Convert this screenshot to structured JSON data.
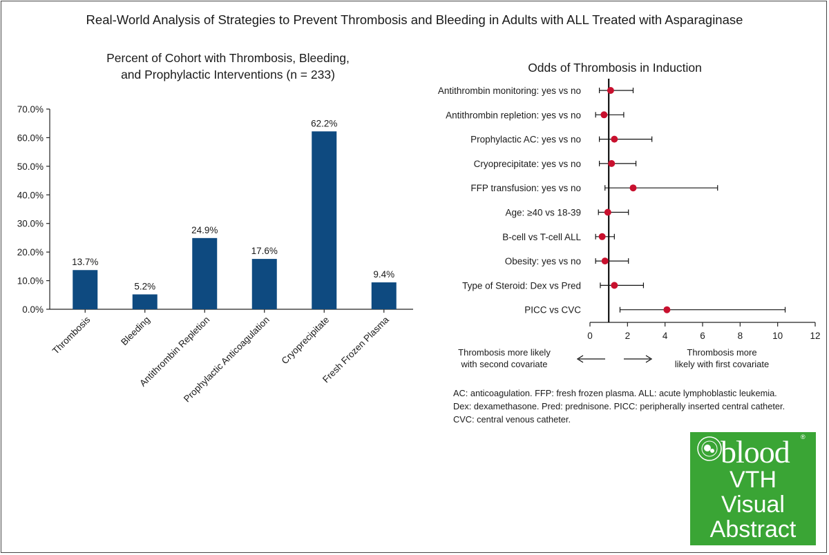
{
  "title": "Real-World Analysis of Strategies to Prevent Thrombosis and Bleeding in Adults with ALL Treated with Asparaginase",
  "chart_data": [
    {
      "type": "bar",
      "title": "Percent of Cohort with Thrombosis, Bleeding, and Prophylactic Interventions (n = 233)",
      "title_lines": [
        "Percent of Cohort with Thrombosis, Bleeding,",
        "and Prophylactic Interventions (n = 233)"
      ],
      "categories": [
        "Thrombosis",
        "Bleeding",
        "Antithrombin Repletion",
        "Prophylactic Anticoagulation",
        "Cryoprecipitate",
        "Fresh Frozen Plasma"
      ],
      "values": [
        13.7,
        5.2,
        24.9,
        17.6,
        62.2,
        9.4
      ],
      "value_labels": [
        "13.7%",
        "5.2%",
        "24.9%",
        "17.6%",
        "62.2%",
        "9.4%"
      ],
      "ylim": [
        0,
        70
      ],
      "yticks": [
        0,
        10,
        20,
        30,
        40,
        50,
        60,
        70
      ],
      "ytick_labels": [
        "0.0%",
        "10.0%",
        "20.0%",
        "30.0%",
        "40.0%",
        "50.0%",
        "60.0%",
        "70.0%"
      ],
      "bar_color": "#0e4a80",
      "grid": false
    },
    {
      "type": "forest",
      "title": "Odds of Thrombosis in Induction",
      "reference_line": 1,
      "xlim": [
        0,
        12
      ],
      "xticks": [
        0,
        2,
        4,
        6,
        8,
        10,
        12
      ],
      "point_color": "#c8102e",
      "rows": [
        {
          "label": "Antithrombin monitoring: yes vs no",
          "or": 1.1,
          "lo": 0.5,
          "hi": 2.3
        },
        {
          "label": "Antithrombin repletion: yes vs no",
          "or": 0.75,
          "lo": 0.3,
          "hi": 1.8
        },
        {
          "label": "Prophylactic AC: yes vs no",
          "or": 1.3,
          "lo": 0.5,
          "hi": 3.3
        },
        {
          "label": "Cryoprecipitate: yes vs no",
          "or": 1.15,
          "lo": 0.5,
          "hi": 2.45
        },
        {
          "label": "FFP transfusion: yes vs no",
          "or": 2.3,
          "lo": 0.8,
          "hi": 6.8
        },
        {
          "label": "Age: ≥40 vs 18-39",
          "or": 0.95,
          "lo": 0.45,
          "hi": 2.05
        },
        {
          "label": "B-cell vs T-cell ALL",
          "or": 0.65,
          "lo": 0.3,
          "hi": 1.3
        },
        {
          "label": "Obesity: yes vs no",
          "or": 0.8,
          "lo": 0.3,
          "hi": 2.05
        },
        {
          "label": "Type of Steroid: Dex vs Pred",
          "or": 1.3,
          "lo": 0.55,
          "hi": 2.85
        },
        {
          "label": "PICC vs CVC",
          "or": 4.1,
          "lo": 1.6,
          "hi": 10.4
        }
      ],
      "arrow_left_label": [
        "Thrombosis more likely",
        "with second covariate"
      ],
      "arrow_right_label": [
        "Thrombosis more",
        "likely with first covariate"
      ]
    }
  ],
  "footnote": [
    "AC: anticoagulation. FFP: fresh frozen plasma. ALL: acute lymphoblastic leukemia.",
    "Dex: dexamethasone. Pred: prednisone. PICC: peripherally inserted central catheter.",
    "CVC: central venous catheter."
  ],
  "logo": {
    "brand": "blood",
    "registered": "®",
    "lines": [
      "VTH",
      "Visual",
      "Abstract"
    ],
    "color": "#3aa535"
  }
}
